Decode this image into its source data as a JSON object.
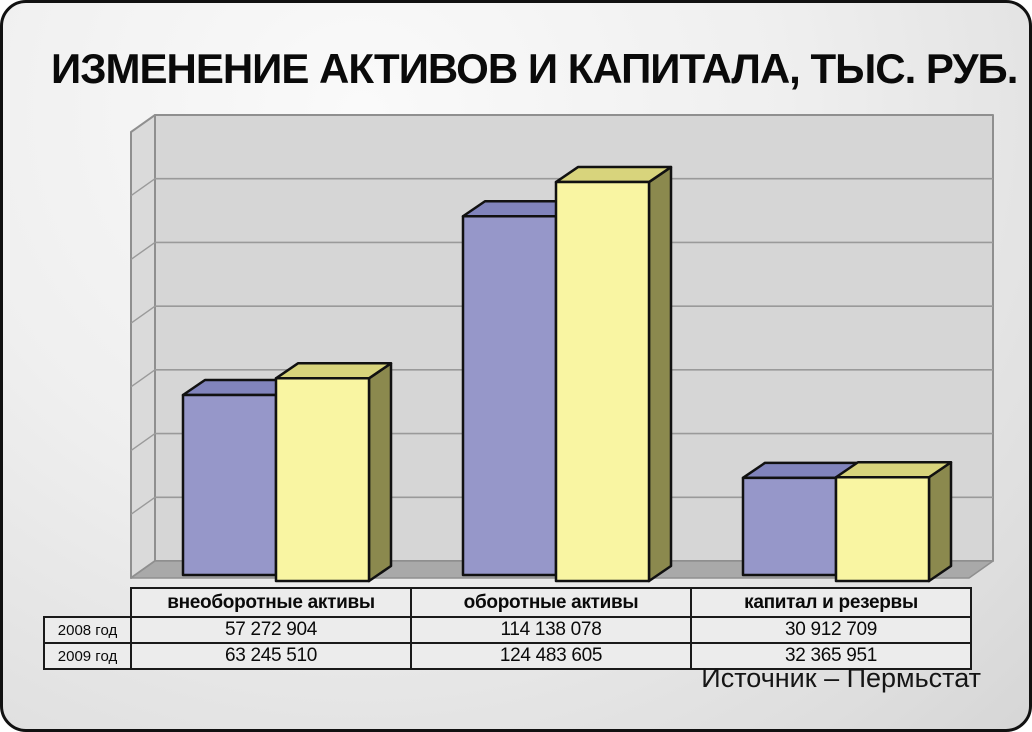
{
  "title": "ИЗМЕНЕНИЕ АКТИВОВ И КАПИТАЛА, ТЫС. РУБ.",
  "source_note": "Источник – Пермьстат",
  "chart_data": {
    "type": "bar",
    "style": "3d-clustered",
    "title": "ИЗМЕНЕНИЕ АКТИВОВ И КАПИТАЛА, ТЫС. РУБ.",
    "value_unit": "тыс. руб.",
    "categories": [
      "внеоборотные активы",
      "оборотные активы",
      "капитал и резервы"
    ],
    "series": [
      {
        "name": "2008 год",
        "values": [
          57272904,
          114138078,
          30912709
        ],
        "color_front": "#9697c9",
        "color_top": "#8184bc",
        "color_side": "#6f72a8"
      },
      {
        "name": "2009 год",
        "values": [
          63245510,
          124483605,
          32365951
        ],
        "color_front": "#f9f5a2",
        "color_top": "#d8d47c",
        "color_side": "#8b894e"
      }
    ],
    "ylim": [
      0,
      140000000
    ],
    "grid_divisions": 7,
    "gridlines": true,
    "axis_tick_labels_visible": false,
    "legend_position": "table-below"
  },
  "table": {
    "column_headers": [
      "внеоборотные активы",
      "оборотные активы",
      "капитал и резервы"
    ],
    "rows": [
      {
        "label": "2008 год",
        "values": [
          "57 272 904",
          "114 138 078",
          "30 912 709"
        ]
      },
      {
        "label": "2009 год",
        "values": [
          "63 245 510",
          "124 483 605",
          "32 365 951"
        ]
      }
    ]
  },
  "colors": {
    "frame_border": "#111111",
    "back_wall": "#d6d6d6",
    "left_wall": "#dadada",
    "floor": "#a9a9a9",
    "gridline": "#9a9a9a",
    "wall_edge": "#8f8f8f",
    "bar_outline": "#111111"
  }
}
